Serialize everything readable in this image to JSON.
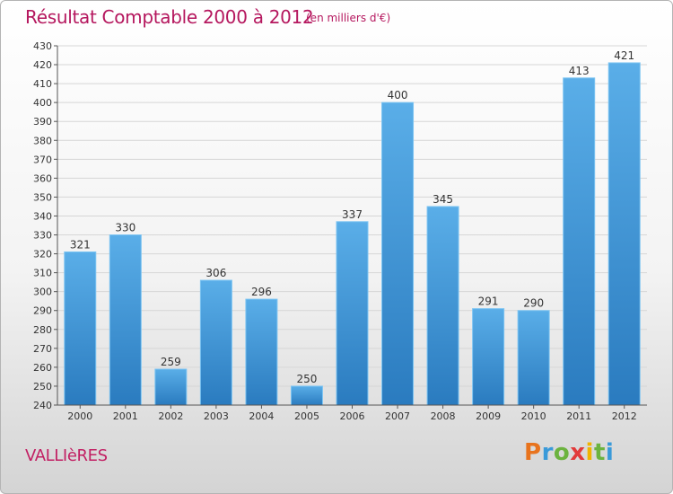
{
  "header": {
    "title": "Résultat Comptable 2000 à 2012",
    "subtitle": "(en milliers d'€)"
  },
  "footer": {
    "commune": "VALLIèRES",
    "logo": {
      "letters": [
        "P",
        "r",
        "o",
        "x",
        "i",
        "t",
        "i"
      ],
      "colors": [
        "#e8731d",
        "#3a9ad9",
        "#6cb33f",
        "#e23a3a",
        "#f0b400",
        "#6cb33f",
        "#3a9ad9"
      ]
    }
  },
  "chart_data": {
    "type": "bar",
    "categories": [
      "2000",
      "2001",
      "2002",
      "2003",
      "2004",
      "2005",
      "2006",
      "2007",
      "2008",
      "2009",
      "2010",
      "2011",
      "2012"
    ],
    "values": [
      321,
      330,
      259,
      306,
      296,
      250,
      337,
      400,
      345,
      291,
      290,
      413,
      421
    ],
    "ylim": [
      240,
      430
    ],
    "ytick_step": 10,
    "grid": true,
    "bar_colors": {
      "top": "#5aaee8",
      "bottom": "#2a7bbf"
    }
  }
}
